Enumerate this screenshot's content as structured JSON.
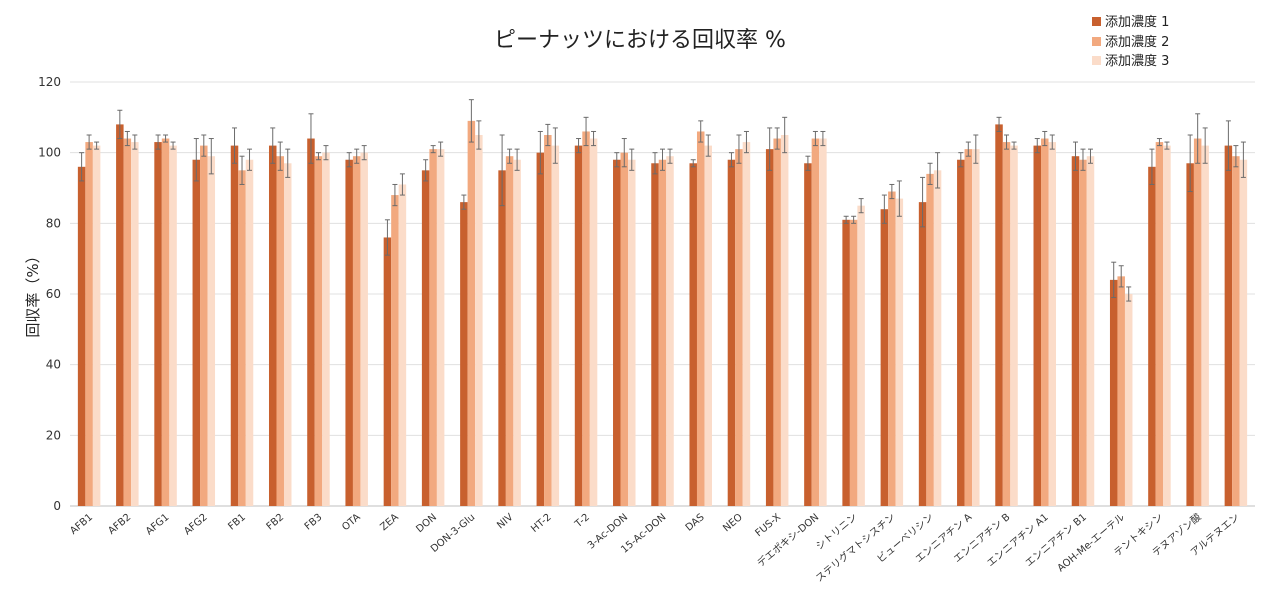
{
  "chart_data": {
    "type": "bar",
    "title": "ピーナッツにおける回収率 %",
    "ylabel": "回収率（%）",
    "xlabel": "",
    "ylim": [
      0,
      120
    ],
    "yticks": [
      0,
      20,
      40,
      60,
      80,
      100,
      120
    ],
    "grid": true,
    "legend_position": "top-right",
    "categories": [
      "AFB1",
      "AFB2",
      "AFG1",
      "AFG2",
      "FB1",
      "FB2",
      "FB3",
      "OTA",
      "ZEA",
      "DON",
      "DON-3-Glu",
      "NIV",
      "HT-2",
      "T-2",
      "3-Ac-DON",
      "15-Ac-DON",
      "DAS",
      "NEO",
      "FUS-X",
      "デエポキシ-DON",
      "シトリニン",
      "ステリグマトシスチン",
      "ビューベリシン",
      "エンニアチン A",
      "エンニアチン B",
      "エンニアチン A1",
      "エンニアチン B1",
      "AOH-Me-エーテル",
      "テントキシン",
      "テヌアゾン酸",
      "アルテヌエン"
    ],
    "series": [
      {
        "name": "添加濃度 1",
        "color": "#c8602e",
        "values": [
          96,
          108,
          103,
          98,
          102,
          102,
          104,
          98,
          76,
          95,
          86,
          95,
          100,
          102,
          98,
          97,
          97,
          98,
          101,
          97,
          81,
          84,
          86,
          98,
          108,
          102,
          99,
          64,
          96,
          97,
          102
        ],
        "errors": [
          4,
          4,
          2,
          6,
          5,
          5,
          7,
          2,
          5,
          3,
          2,
          10,
          6,
          2,
          2,
          3,
          1,
          2,
          6,
          2,
          1,
          4,
          7,
          2,
          2,
          2,
          4,
          5,
          5,
          8,
          7
        ]
      },
      {
        "name": "添加濃度 2",
        "color": "#f2a97f",
        "values": [
          103,
          104,
          104,
          102,
          95,
          99,
          99,
          99,
          88,
          101,
          109,
          99,
          105,
          106,
          100,
          98,
          106,
          101,
          104,
          104,
          81,
          89,
          94,
          101,
          103,
          104,
          98,
          65,
          103,
          104,
          99
        ],
        "errors": [
          2,
          2,
          1,
          3,
          4,
          4,
          1,
          2,
          3,
          1,
          6,
          2,
          3,
          4,
          4,
          3,
          3,
          4,
          3,
          2,
          1,
          2,
          3,
          2,
          2,
          2,
          3,
          3,
          1,
          7,
          3
        ]
      },
      {
        "name": "添加濃度 3",
        "color": "#fbdcc9",
        "values": [
          102,
          103,
          102,
          99,
          98,
          97,
          100,
          100,
          91,
          101,
          105,
          98,
          102,
          104,
          98,
          99,
          102,
          103,
          105,
          104,
          85,
          87,
          95,
          101,
          102,
          103,
          99,
          60,
          102,
          102,
          98
        ],
        "errors": [
          1,
          2,
          1,
          5,
          3,
          4,
          2,
          2,
          3,
          2,
          4,
          3,
          5,
          2,
          3,
          2,
          3,
          3,
          5,
          2,
          2,
          5,
          5,
          4,
          1,
          2,
          2,
          2,
          1,
          5,
          5
        ]
      }
    ]
  }
}
